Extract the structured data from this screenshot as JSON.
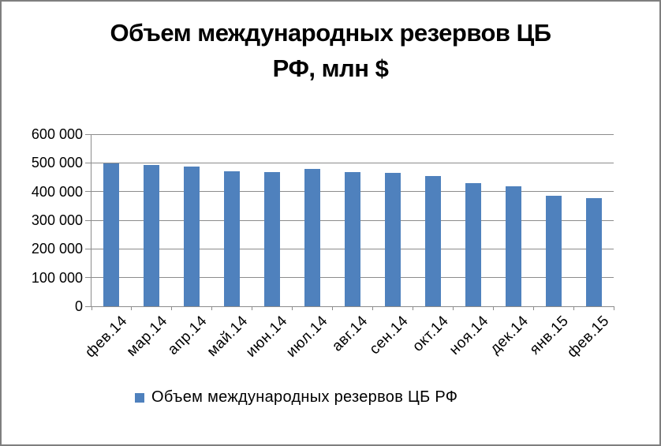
{
  "window": {
    "background": "#ffffff",
    "border_color": "#7f7f7f"
  },
  "chart_data": {
    "type": "bar",
    "title": "Объем международных резервов ЦБ РФ, млн $",
    "title_lines": [
      "Объем международных резервов ЦБ",
      "РФ, млн $"
    ],
    "categories": [
      "фев.14",
      "мар.14",
      "апр.14",
      "май.14",
      "июн.14",
      "июл.14",
      "авг.14",
      "сен.14",
      "окт.14",
      "ноя.14",
      "дек.14",
      "янв.15",
      "фев.15"
    ],
    "series": [
      {
        "name": "Объем международных резервов ЦБ РФ",
        "color": "#4F81BD",
        "values": [
          499000,
          493000,
          486000,
          472000,
          467000,
          478000,
          468000,
          465000,
          454000,
          429000,
          419000,
          386000,
          376000
        ]
      }
    ],
    "xlabel": "",
    "ylabel": "",
    "ylim": [
      0,
      600000
    ],
    "ytick_step": 100000,
    "ytick_labels": [
      "0",
      "100 000",
      "200 000",
      "300 000",
      "400 000",
      "500 000",
      "600 000"
    ],
    "grid": true,
    "gridline_color": "#8c8c8c",
    "axis_color": "#8c8c8c",
    "legend_position": "bottom"
  },
  "legend": {
    "label": "Объем международных резервов ЦБ РФ",
    "marker_color": "#4F81BD"
  }
}
